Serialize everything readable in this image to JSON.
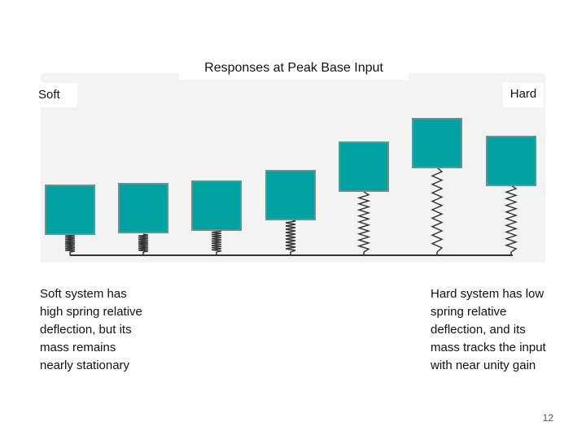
{
  "figure": {
    "title": "Responses at Peak Base Input",
    "left_label": "Soft",
    "right_label": "Hard",
    "mass_color": "#00a2a1",
    "mass_border_color": "#5a9898",
    "spring_color": "#333333",
    "systems": [
      {
        "name": "system-1",
        "stiffness_rank": 1
      },
      {
        "name": "system-2",
        "stiffness_rank": 2
      },
      {
        "name": "system-3",
        "stiffness_rank": 3
      },
      {
        "name": "system-4",
        "stiffness_rank": 4
      },
      {
        "name": "system-5",
        "stiffness_rank": 5
      },
      {
        "name": "system-6",
        "stiffness_rank": 6
      },
      {
        "name": "system-7",
        "stiffness_rank": 7
      }
    ]
  },
  "captions": {
    "soft": "Soft system has\nhigh spring relative\ndeflection, but its\nmass remains\nnearly stationary",
    "hard": "Hard system has low\nspring relative\ndeflection, and its\nmass tracks the input\nwith near unity gain"
  },
  "page_number": "12"
}
